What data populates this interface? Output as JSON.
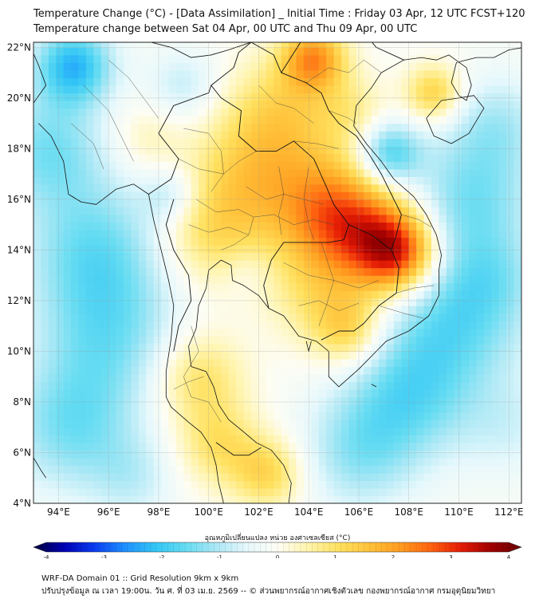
{
  "header": {
    "title_line1": "Temperature Change (°C) - [Data Assimilation] _ Initial Time : Friday 03 Apr, 12 UTC FCST+120",
    "title_line2": "Temperature change between Sat 04 Apr, 00 UTC and Thu 09 Apr, 00 UTC"
  },
  "map": {
    "lon_range": [
      93,
      112.5
    ],
    "lat_range": [
      4,
      22.2
    ],
    "lon_ticks": [
      {
        "value": 94,
        "label": "94°E"
      },
      {
        "value": 96,
        "label": "96°E"
      },
      {
        "value": 98,
        "label": "98°E"
      },
      {
        "value": 100,
        "label": "100°E"
      },
      {
        "value": 102,
        "label": "102°E"
      },
      {
        "value": 104,
        "label": "104°E"
      },
      {
        "value": 106,
        "label": "106°E"
      },
      {
        "value": 108,
        "label": "108°E"
      },
      {
        "value": 110,
        "label": "110°E"
      },
      {
        "value": 112,
        "label": "112°E"
      }
    ],
    "lat_ticks": [
      {
        "value": 4,
        "label": "4°N"
      },
      {
        "value": 6,
        "label": "6°N"
      },
      {
        "value": 8,
        "label": "8°N"
      },
      {
        "value": 10,
        "label": "10°N"
      },
      {
        "value": 12,
        "label": "12°N"
      },
      {
        "value": 14,
        "label": "14°N"
      },
      {
        "value": 16,
        "label": "16°N"
      },
      {
        "value": 18,
        "label": "18°N"
      },
      {
        "value": 20,
        "label": "20°N"
      },
      {
        "value": 22,
        "label": "22°N"
      }
    ],
    "grid": true,
    "field_anomalies": [
      {
        "lon": 104.8,
        "lat": 15.6,
        "value": 1.8,
        "r": 1.6
      },
      {
        "lon": 107.6,
        "lat": 13.9,
        "value": 2.6,
        "r": 1.1
      },
      {
        "lon": 106.3,
        "lat": 14.6,
        "value": 1.6,
        "r": 1.5
      },
      {
        "lon": 104.2,
        "lat": 21.6,
        "value": 2.0,
        "r": 0.9
      },
      {
        "lon": 103.0,
        "lat": 19.5,
        "value": 1.1,
        "r": 1.6
      },
      {
        "lon": 101.6,
        "lat": 16.8,
        "value": 1.2,
        "r": 1.8
      },
      {
        "lon": 100.0,
        "lat": 14.5,
        "value": 0.9,
        "r": 1.5
      },
      {
        "lon": 99.6,
        "lat": 9.0,
        "value": 1.1,
        "r": 1.3
      },
      {
        "lon": 100.4,
        "lat": 6.3,
        "value": 1.0,
        "r": 1.2
      },
      {
        "lon": 102.4,
        "lat": 5.2,
        "value": 1.2,
        "r": 1.0
      },
      {
        "lon": 104.3,
        "lat": 12.2,
        "value": 0.8,
        "r": 1.4
      },
      {
        "lon": 105.6,
        "lat": 10.8,
        "value": 1.2,
        "r": 1.0
      },
      {
        "lon": 109.0,
        "lat": 20.2,
        "value": 1.4,
        "r": 0.8
      },
      {
        "lon": 105.8,
        "lat": 19.5,
        "value": 0.6,
        "r": 1.0
      },
      {
        "lon": 97.5,
        "lat": 18.4,
        "value": 0.5,
        "r": 1.0
      },
      {
        "lon": 94.6,
        "lat": 21.3,
        "value": -2.0,
        "r": 1.1
      },
      {
        "lon": 93.6,
        "lat": 18.0,
        "value": -1.2,
        "r": 1.6
      },
      {
        "lon": 95.5,
        "lat": 14.0,
        "value": -1.3,
        "r": 2.0
      },
      {
        "lon": 96.0,
        "lat": 10.5,
        "value": -1.1,
        "r": 2.0
      },
      {
        "lon": 94.5,
        "lat": 7.0,
        "value": -1.2,
        "r": 1.8
      },
      {
        "lon": 107.2,
        "lat": 17.8,
        "value": -1.7,
        "r": 0.9
      },
      {
        "lon": 110.5,
        "lat": 16.0,
        "value": -1.2,
        "r": 1.8
      },
      {
        "lon": 110.0,
        "lat": 11.5,
        "value": -1.4,
        "r": 2.0
      },
      {
        "lon": 108.0,
        "lat": 8.3,
        "value": -1.3,
        "r": 1.8
      },
      {
        "lon": 106.0,
        "lat": 6.0,
        "value": -1.0,
        "r": 1.6
      },
      {
        "lon": 111.5,
        "lat": 19.0,
        "value": -0.8,
        "r": 1.4
      },
      {
        "lon": 98.5,
        "lat": 16.2,
        "value": -0.8,
        "r": 0.8
      },
      {
        "lon": 101.5,
        "lat": 13.2,
        "value": -0.3,
        "r": 0.7
      },
      {
        "lon": 97.0,
        "lat": 5.0,
        "value": -0.6,
        "r": 1.2
      },
      {
        "lon": 99.0,
        "lat": 20.5,
        "value": -0.7,
        "r": 1.0
      },
      {
        "lon": 112.0,
        "lat": 7.0,
        "value": -0.5,
        "r": 1.4
      },
      {
        "lon": 111.5,
        "lat": 13.0,
        "value": -0.4,
        "r": 1.2
      }
    ]
  },
  "colorbar": {
    "title": "อุณหภูมิเปลี่ยนแปลง หน่วย องศาเซลเซียส (°C)",
    "min": -4,
    "max": 4,
    "ticks": [
      {
        "value": -4,
        "label": "-4"
      },
      {
        "value": -3,
        "label": "-3"
      },
      {
        "value": -2,
        "label": "-2"
      },
      {
        "value": -1,
        "label": "-1"
      },
      {
        "value": 0,
        "label": "0"
      },
      {
        "value": 1,
        "label": "1"
      },
      {
        "value": 2,
        "label": "2"
      },
      {
        "value": 3,
        "label": "3"
      },
      {
        "value": 4,
        "label": "4"
      }
    ],
    "colors": [
      "#00003a",
      "#0000b4",
      "#0a3cf0",
      "#1e90ff",
      "#33c6f5",
      "#66dcf2",
      "#ace8f5",
      "#e6f8fc",
      "#fdfdf4",
      "#fff4ad",
      "#ffe160",
      "#ffc23a",
      "#ff9d20",
      "#ff6410",
      "#e41c05",
      "#a00000",
      "#640000"
    ]
  },
  "footer": {
    "line1": "WRF-DA Domain 01 :: Grid Resolution 9km x 9km",
    "line2": "ปรับปรุงข้อมูล ณ เวลา 19:00น. วัน ศ. ที่ 03 เม.ย. 2569 -- © ส่วนพยากรณ์อากาศเชิงตัวเลข กองพยากรณ์อากาศ กรมอุตุนิยมวิทยา"
  }
}
